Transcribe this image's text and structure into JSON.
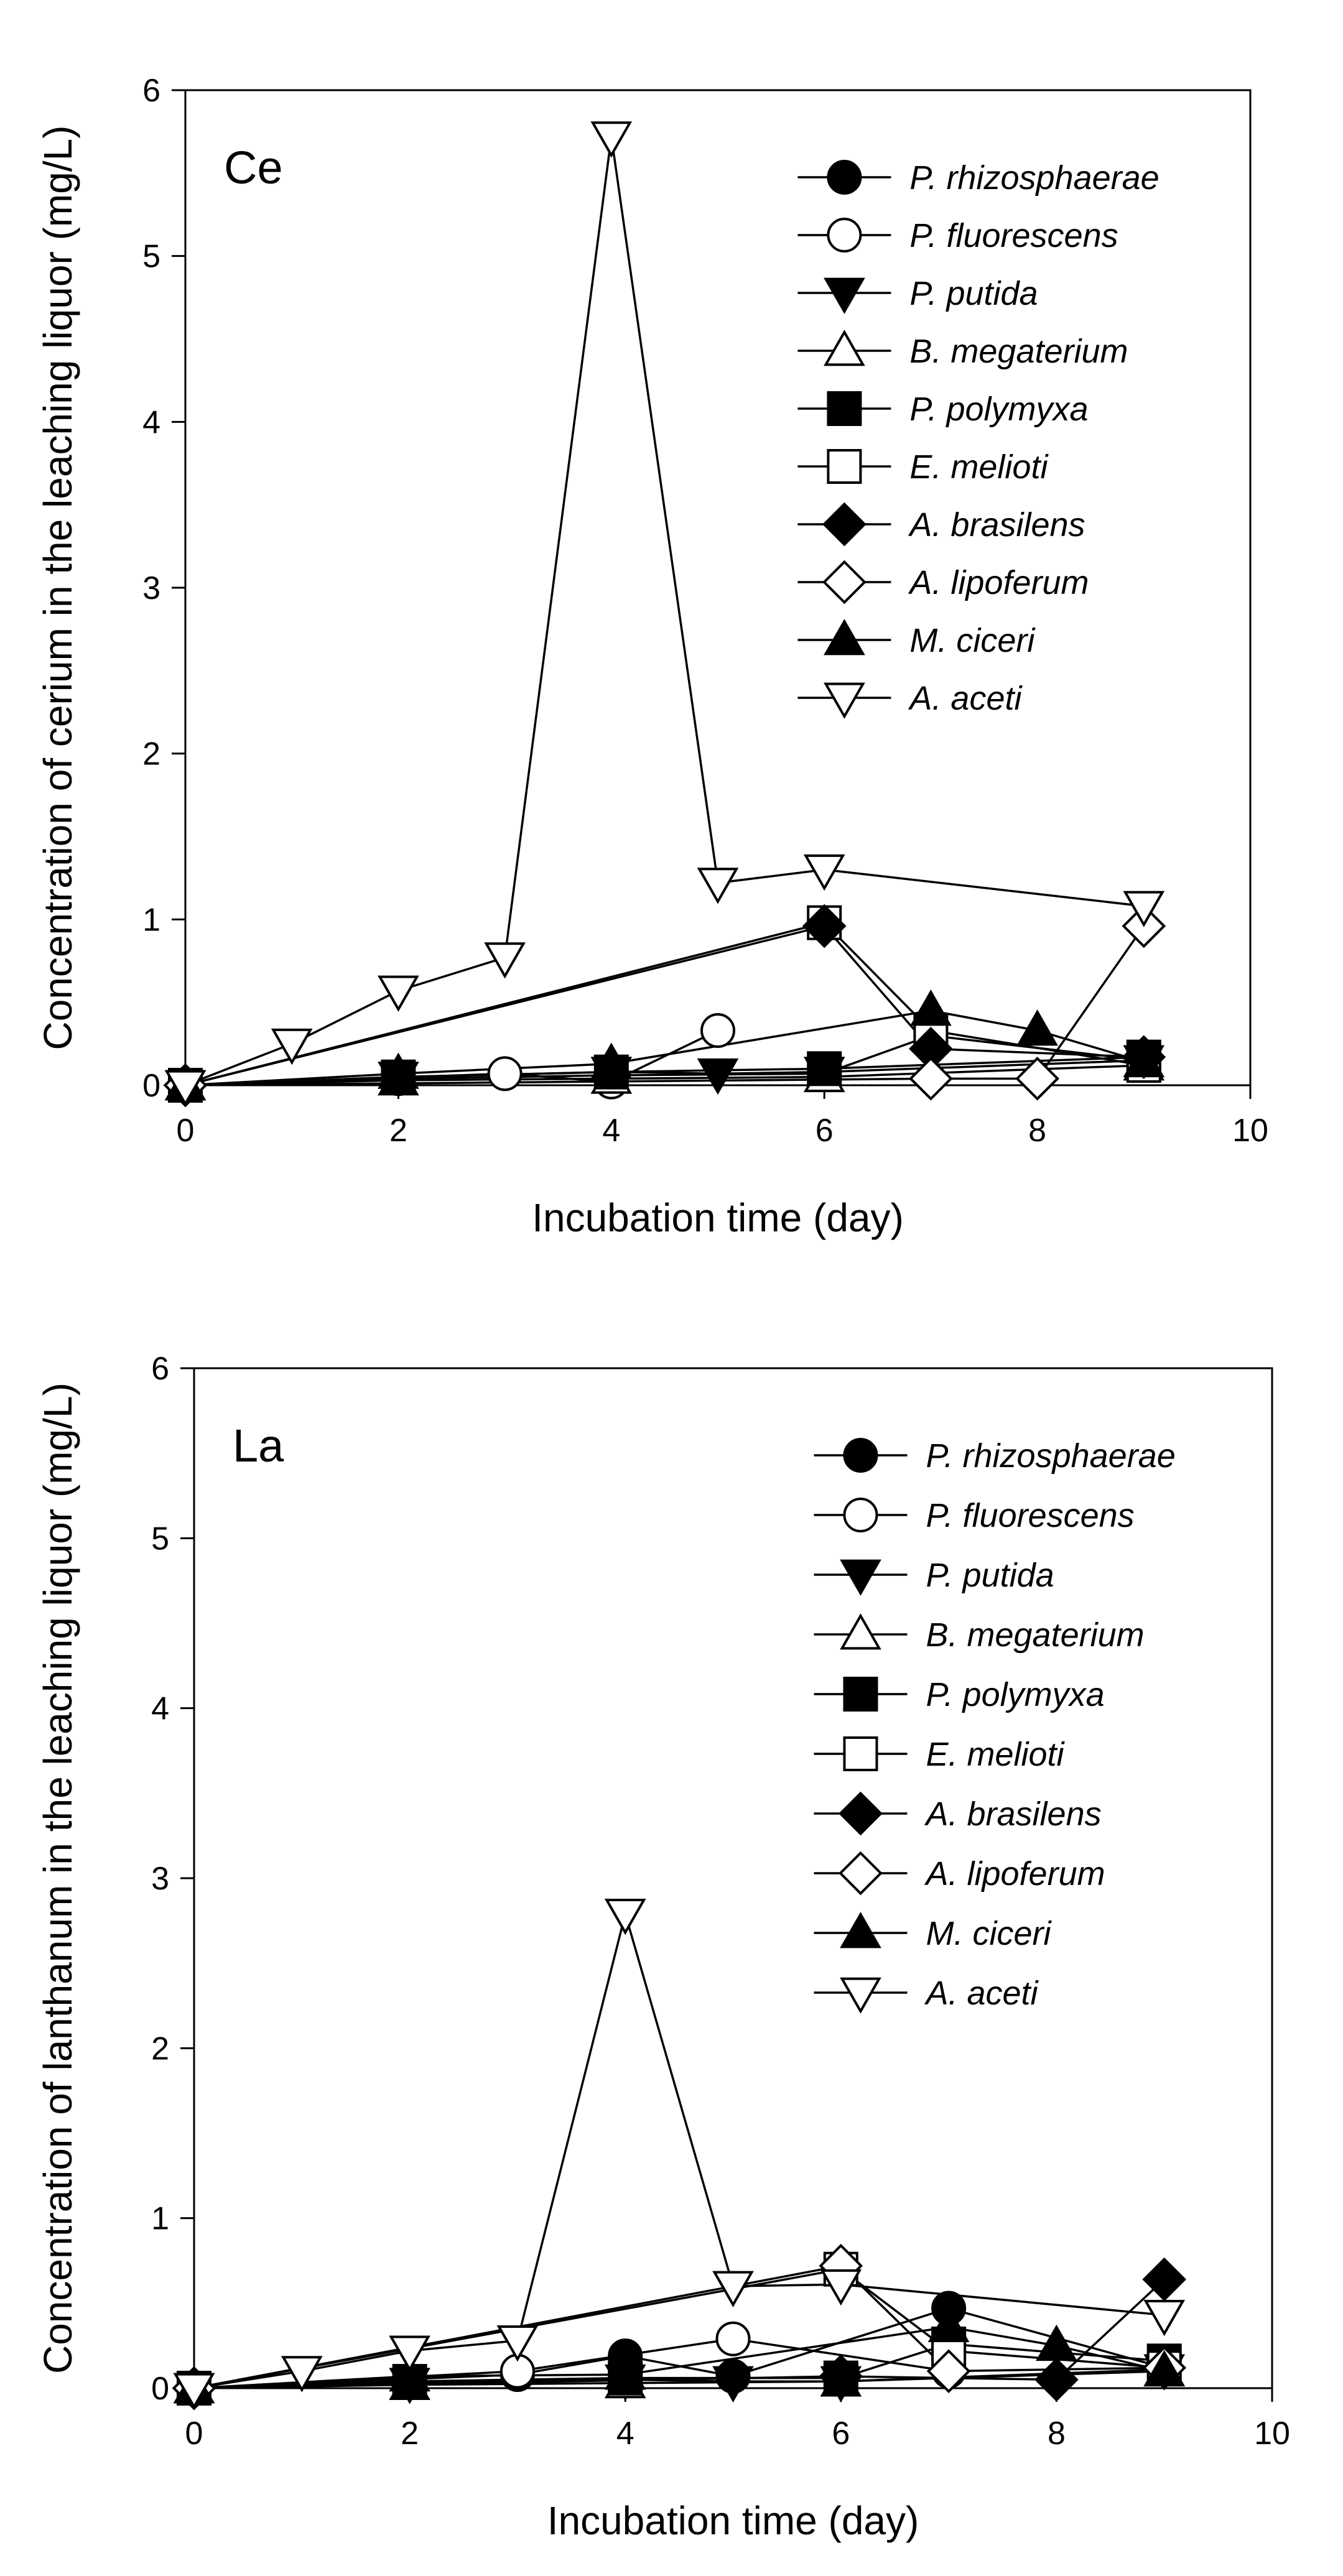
{
  "chart_data": [
    {
      "type": "line",
      "panel_label": "Ce",
      "xlabel": "Incubation time (day)",
      "ylabel": "Concentration of cerium in the leaching liquor (mg/L)",
      "xlim": [
        0,
        10
      ],
      "ylim": [
        0,
        6
      ],
      "xticks": [
        "0",
        "2",
        "4",
        "6",
        "8",
        "10"
      ],
      "yticks": [
        "0",
        "1",
        "2",
        "3",
        "4",
        "5",
        "6"
      ],
      "legend_position": "top-right",
      "series": [
        {
          "name": "P. rhizosphaerae",
          "marker": "circle",
          "filled": true,
          "x": [
            0,
            2,
            4,
            6,
            7,
            9
          ],
          "y": [
            0.0,
            0.04,
            0.06,
            0.07,
            0.3,
            0.15
          ]
        },
        {
          "name": "P. fluorescens",
          "marker": "circle",
          "filled": false,
          "x": [
            0,
            3,
            4,
            5
          ],
          "y": [
            0.0,
            0.07,
            0.02,
            0.33
          ]
        },
        {
          "name": "P. putida",
          "marker": "triangle-down",
          "filled": true,
          "x": [
            0,
            2,
            4,
            5,
            6,
            9
          ],
          "y": [
            0.0,
            0.05,
            0.08,
            0.07,
            0.08,
            0.15
          ]
        },
        {
          "name": "B. megaterium",
          "marker": "triangle-up",
          "filled": false,
          "x": [
            0,
            2,
            4,
            6,
            9
          ],
          "y": [
            0.0,
            0.03,
            0.04,
            0.05,
            0.12
          ]
        },
        {
          "name": "P. polymyxa",
          "marker": "square",
          "filled": true,
          "x": [
            0,
            2,
            4,
            6,
            9
          ],
          "y": [
            0.0,
            0.05,
            0.08,
            0.1,
            0.17
          ]
        },
        {
          "name": "E. melioti",
          "marker": "square",
          "filled": false,
          "x": [
            0,
            6,
            7,
            9
          ],
          "y": [
            0.0,
            0.98,
            0.33,
            0.12
          ]
        },
        {
          "name": "A. brasilens",
          "marker": "diamond",
          "filled": true,
          "x": [
            0,
            6,
            7,
            9
          ],
          "y": [
            0.0,
            0.96,
            0.22,
            0.17
          ]
        },
        {
          "name": "A. lipoferum",
          "marker": "diamond",
          "filled": false,
          "x": [
            0,
            7,
            8,
            9
          ],
          "y": [
            0.0,
            0.04,
            0.04,
            0.96
          ]
        },
        {
          "name": "M. ciceri",
          "marker": "triangle-up",
          "filled": true,
          "x": [
            0,
            2,
            4,
            7,
            8,
            9
          ],
          "y": [
            0.0,
            0.07,
            0.13,
            0.45,
            0.33,
            0.14
          ]
        },
        {
          "name": "A. aceti",
          "marker": "triangle-down",
          "filled": false,
          "x": [
            0,
            1,
            2,
            3,
            4,
            5,
            6,
            9
          ],
          "y": [
            0.0,
            0.25,
            0.57,
            0.77,
            5.72,
            1.22,
            1.3,
            1.08
          ]
        }
      ]
    },
    {
      "type": "line",
      "panel_label": "La",
      "xlabel": "Incubation time (day)",
      "ylabel": "Concentration of lanthanum in the leaching liquor (mg/L)",
      "xlim": [
        0,
        10
      ],
      "ylim": [
        0,
        6
      ],
      "xticks": [
        "0",
        "2",
        "4",
        "6",
        "8",
        "10"
      ],
      "yticks": [
        "0",
        "1",
        "2",
        "3",
        "4",
        "5",
        "6"
      ],
      "legend_position": "top-right",
      "series": [
        {
          "name": "P. rhizosphaerae",
          "marker": "circle",
          "filled": true,
          "x": [
            0,
            3,
            4,
            5,
            7,
            9
          ],
          "y": [
            0.0,
            0.08,
            0.19,
            0.07,
            0.47,
            0.12
          ]
        },
        {
          "name": "P. fluorescens",
          "marker": "circle",
          "filled": false,
          "x": [
            0,
            3,
            5,
            7
          ],
          "y": [
            0.0,
            0.1,
            0.29,
            0.1
          ]
        },
        {
          "name": "P. putida",
          "marker": "triangle-down",
          "filled": true,
          "x": [
            0,
            2,
            4,
            5,
            6,
            9
          ],
          "y": [
            0.0,
            0.03,
            0.05,
            0.04,
            0.04,
            0.11
          ]
        },
        {
          "name": "B. megaterium",
          "marker": "triangle-up",
          "filled": false,
          "x": [
            0,
            2,
            4,
            6,
            9
          ],
          "y": [
            0.0,
            0.02,
            0.03,
            0.04,
            0.1
          ]
        },
        {
          "name": "P. polymyxa",
          "marker": "square",
          "filled": true,
          "x": [
            0,
            2,
            4,
            6,
            7,
            9
          ],
          "y": [
            0.0,
            0.04,
            0.06,
            0.06,
            0.26,
            0.16
          ]
        },
        {
          "name": "E. melioti",
          "marker": "square",
          "filled": false,
          "x": [
            0,
            6,
            7,
            9
          ],
          "y": [
            0.0,
            0.7,
            0.22,
            0.12
          ]
        },
        {
          "name": "A. brasilens",
          "marker": "diamond",
          "filled": true,
          "x": [
            0,
            6,
            8,
            9
          ],
          "y": [
            0.0,
            0.07,
            0.05,
            0.64
          ]
        },
        {
          "name": "A. lipoferum",
          "marker": "diamond",
          "filled": false,
          "x": [
            0,
            6,
            7,
            9
          ],
          "y": [
            0.0,
            0.72,
            0.1,
            0.12
          ]
        },
        {
          "name": "M. ciceri",
          "marker": "triangle-up",
          "filled": true,
          "x": [
            0,
            2,
            4,
            7,
            8,
            9
          ],
          "y": [
            0.0,
            0.07,
            0.08,
            0.36,
            0.25,
            0.1
          ]
        },
        {
          "name": "A. aceti",
          "marker": "triangle-down",
          "filled": false,
          "x": [
            0,
            1,
            2,
            3,
            4,
            5,
            6,
            9
          ],
          "y": [
            0.0,
            0.1,
            0.22,
            0.28,
            2.79,
            0.6,
            0.61,
            0.43
          ]
        }
      ]
    }
  ]
}
